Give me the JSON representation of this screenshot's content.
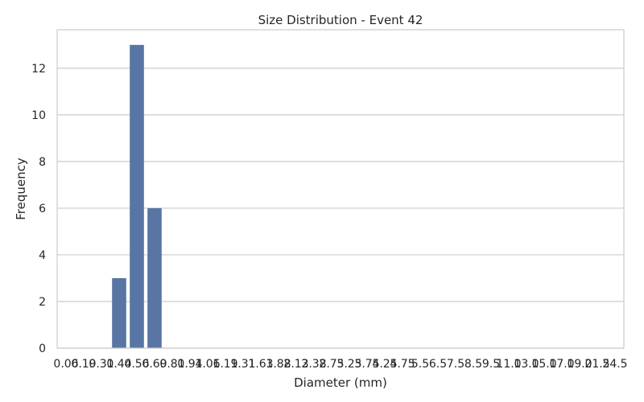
{
  "chart_data": {
    "type": "bar",
    "title": "Size Distribution - Event 42",
    "xlabel": "Diameter (mm)",
    "ylabel": "Frequency",
    "categories": [
      "0.06",
      "0.19",
      "0.31",
      "0.44",
      "0.56",
      "0.69",
      "0.81",
      "0.94",
      "1.06",
      "1.19",
      "1.31",
      "1.63",
      "1.88",
      "2.13",
      "2.38",
      "2.75",
      "3.25",
      "3.75",
      "4.25",
      "4.75",
      "5.5",
      "6.5",
      "7.5",
      "8.5",
      "9.5",
      "11.0",
      "13.0",
      "15.0",
      "17.0",
      "19.0",
      "21.5",
      "24.5"
    ],
    "values": [
      0,
      0,
      0,
      3,
      13,
      6,
      0,
      0,
      0,
      0,
      0,
      0,
      0,
      0,
      0,
      0,
      0,
      0,
      0,
      0,
      0,
      0,
      0,
      0,
      0,
      0,
      0,
      0,
      0,
      0,
      0,
      0
    ],
    "yticks": [
      0,
      2,
      4,
      6,
      8,
      10,
      12
    ],
    "ylim": [
      0,
      13.65
    ],
    "grid": "horizontal",
    "bar_color": "#5875a4",
    "grid_color": "#cccccc",
    "frame_color": "#cccccc"
  }
}
